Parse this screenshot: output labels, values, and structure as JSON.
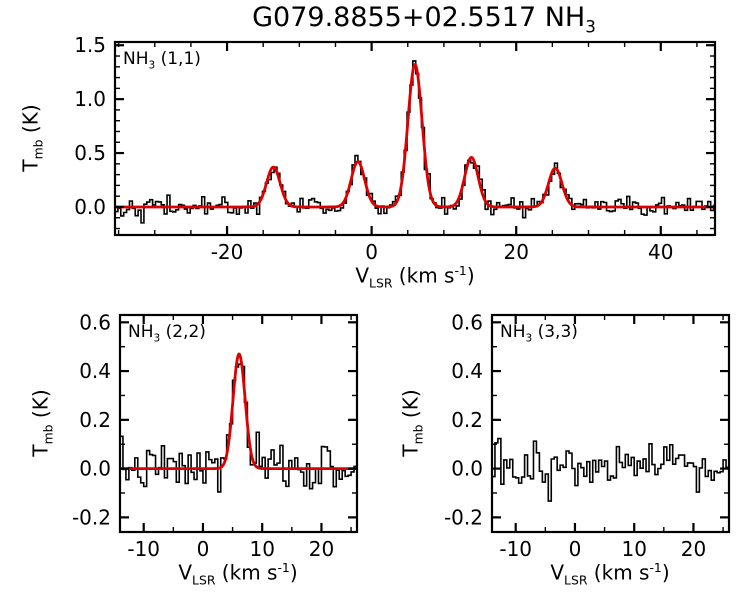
{
  "title": {
    "main": "G079.8855+02.5517 NH",
    "sub": "3"
  },
  "labels": {
    "y_pre": "T",
    "y_sub": "mb",
    "y_post": " (K)",
    "x_pre": "V",
    "x_sub": "LSR",
    "x_mid": " (km s",
    "x_sup": "-1",
    "x_post": ")"
  },
  "chart_data": [
    {
      "type": "line",
      "title": "NH3 (1,1) spectrum with Gaussian fit",
      "label_pre": "NH",
      "label_sub": "3",
      "label_post": " (1,1)",
      "xlabel": "V_LSR (km s^-1)",
      "ylabel": "T_mb (K)",
      "xlim": [
        -35.5,
        47.5
      ],
      "ylim": [
        -0.26,
        1.53
      ],
      "xticks": [
        -20,
        0,
        20,
        40
      ],
      "xtick_labels": [
        "-20",
        "0",
        "20",
        "40"
      ],
      "yticks": [
        0,
        0.5,
        1,
        1.5
      ],
      "ytick_labels": [
        "0.0",
        "0.5",
        "1.0",
        "1.5"
      ],
      "x_minor_step": 5,
      "y_minor_step": 0.1,
      "channel_width_kms": 0.4,
      "noise_sigma_K": 0.045,
      "noise_seed": 42,
      "series": [
        {
          "name": "observed spectrum (histogram)",
          "style": "step",
          "color": "#000000"
        },
        {
          "name": "gaussian fit",
          "style": "smooth",
          "color": "#dd0000"
        }
      ],
      "fit_components": [
        {
          "center_kms": -13.6,
          "amp_K": 0.37,
          "fwhm_kms": 2.2
        },
        {
          "center_kms": -1.9,
          "amp_K": 0.42,
          "fwhm_kms": 2.2
        },
        {
          "center_kms": 6.0,
          "amp_K": 1.32,
          "fwhm_kms": 2.3
        },
        {
          "center_kms": 13.8,
          "amp_K": 0.46,
          "fwhm_kms": 2.2
        },
        {
          "center_kms": 25.4,
          "amp_K": 0.36,
          "fwhm_kms": 2.2
        }
      ]
    },
    {
      "type": "line",
      "title": "NH3 (2,2) spectrum with Gaussian fit",
      "label_pre": "NH",
      "label_sub": "3",
      "label_post": " (2,2)",
      "xlabel": "V_LSR (km s^-1)",
      "ylabel": "T_mb (K)",
      "xlim": [
        -14,
        26
      ],
      "ylim": [
        -0.26,
        0.63
      ],
      "xticks": [
        -10,
        0,
        10,
        20
      ],
      "xtick_labels": [
        "-10",
        "0",
        "10",
        "20"
      ],
      "yticks": [
        -0.2,
        0,
        0.2,
        0.4,
        0.6
      ],
      "ytick_labels": [
        "-0.2",
        "0.0",
        "0.2",
        "0.4",
        "0.6"
      ],
      "x_minor_step": 5,
      "y_minor_step": 0.1,
      "channel_width_kms": 0.5,
      "noise_sigma_K": 0.048,
      "noise_seed": 7,
      "series": [
        {
          "name": "observed spectrum (histogram)",
          "style": "step",
          "color": "#000000"
        },
        {
          "name": "gaussian fit",
          "style": "smooth",
          "color": "#dd0000"
        }
      ],
      "fit_components": [
        {
          "center_kms": 6.1,
          "amp_K": 0.47,
          "fwhm_kms": 2.4
        }
      ]
    },
    {
      "type": "line",
      "title": "NH3 (3,3) spectrum (no detection)",
      "label_pre": "NH",
      "label_sub": "3",
      "label_post": " (3,3)",
      "xlabel": "V_LSR (km s^-1)",
      "ylabel": "T_mb (K)",
      "xlim": [
        -14,
        26
      ],
      "ylim": [
        -0.26,
        0.63
      ],
      "xticks": [
        -10,
        0,
        10,
        20
      ],
      "xtick_labels": [
        "-10",
        "0",
        "10",
        "20"
      ],
      "yticks": [
        -0.2,
        0,
        0.2,
        0.4,
        0.6
      ],
      "ytick_labels": [
        "-0.2",
        "0.0",
        "0.2",
        "0.4",
        "0.6"
      ],
      "x_minor_step": 5,
      "y_minor_step": 0.1,
      "channel_width_kms": 0.5,
      "noise_sigma_K": 0.048,
      "noise_seed": 13,
      "series": [
        {
          "name": "observed spectrum (histogram)",
          "style": "step",
          "color": "#000000"
        }
      ],
      "fit_components": []
    }
  ]
}
